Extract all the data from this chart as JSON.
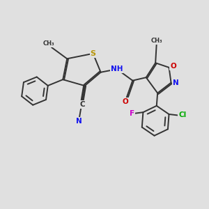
{
  "bg": "#e0e0e0",
  "bond_color": "#333333",
  "bond_lw": 1.4,
  "dbo": 0.06,
  "fs": 7.5,
  "colors": {
    "S": "#b8960a",
    "N": "#1111ee",
    "O": "#cc0000",
    "F": "#cc00cc",
    "Cl": "#00aa00",
    "C": "#333333"
  },
  "xlim": [
    0,
    10
  ],
  "ylim": [
    0,
    10
  ]
}
